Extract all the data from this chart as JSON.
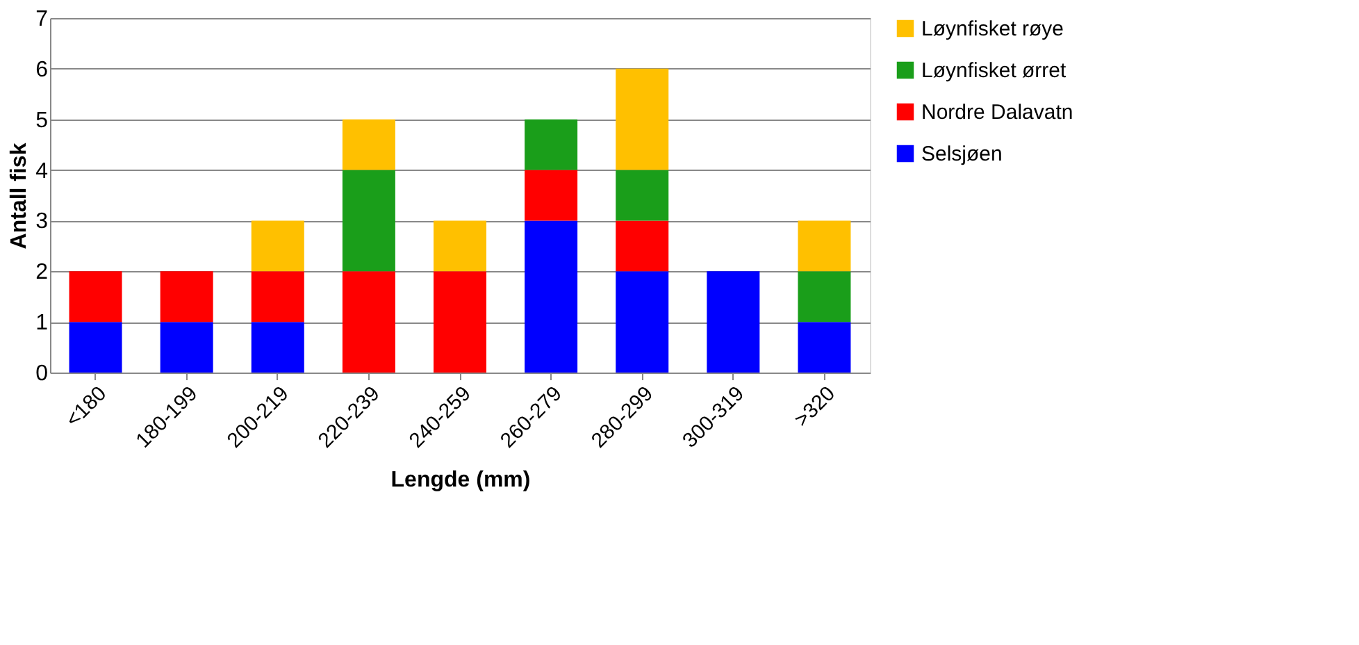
{
  "chart_data": {
    "type": "bar",
    "stacked": true,
    "xlabel": "Lengde (mm)",
    "ylabel": "Antall fisk",
    "categories": [
      "<180",
      "180-199",
      "200-219",
      "220-239",
      "240-259",
      "260-279",
      "280-299",
      "300-319",
      ">320"
    ],
    "series": [
      {
        "name": "Selsjøen",
        "color": "#0000ff",
        "values": [
          1,
          1,
          1,
          0,
          0,
          3,
          2,
          2,
          1
        ]
      },
      {
        "name": "Nordre Dalavatn",
        "color": "#ff0000",
        "values": [
          1,
          1,
          1,
          2,
          2,
          1,
          1,
          0,
          0
        ]
      },
      {
        "name": "Løynfisket ørret",
        "color": "#1a9e1a",
        "values": [
          0,
          0,
          0,
          2,
          0,
          1,
          1,
          0,
          1
        ]
      },
      {
        "name": "Løynfisket røye",
        "color": "#ffc000",
        "values": [
          0,
          0,
          1,
          1,
          1,
          0,
          2,
          0,
          1
        ]
      }
    ],
    "ylim": [
      0,
      7
    ],
    "yticks": [
      0,
      1,
      2,
      3,
      4,
      5,
      6,
      7
    ],
    "grid": "y",
    "legend": "right"
  }
}
